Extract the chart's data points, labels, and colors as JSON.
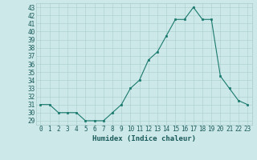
{
  "x": [
    0,
    1,
    2,
    3,
    4,
    5,
    6,
    7,
    8,
    9,
    10,
    11,
    12,
    13,
    14,
    15,
    16,
    17,
    18,
    19,
    20,
    21,
    22,
    23
  ],
  "y": [
    31,
    31,
    30,
    30,
    30,
    29,
    29,
    29,
    30,
    31,
    33,
    34,
    36.5,
    37.5,
    39.5,
    41.5,
    41.5,
    43,
    41.5,
    41.5,
    34.5,
    33,
    31.5,
    31
  ],
  "line_color": "#1a7a6e",
  "marker_color": "#1a7a6e",
  "bg_color": "#cce8e8",
  "grid_color": "#aacccc",
  "xlabel": "Humidex (Indice chaleur)",
  "xlim": [
    -0.5,
    23.5
  ],
  "ylim": [
    28.5,
    43.5
  ],
  "yticks": [
    29,
    30,
    31,
    32,
    33,
    34,
    35,
    36,
    37,
    38,
    39,
    40,
    41,
    42,
    43
  ],
  "xticks": [
    0,
    1,
    2,
    3,
    4,
    5,
    6,
    7,
    8,
    9,
    10,
    11,
    12,
    13,
    14,
    15,
    16,
    17,
    18,
    19,
    20,
    21,
    22,
    23
  ],
  "tick_fontsize": 5.5,
  "label_fontsize": 6.5,
  "tick_color": "#1a5a5a",
  "figsize": [
    3.2,
    2.0
  ],
  "dpi": 100
}
